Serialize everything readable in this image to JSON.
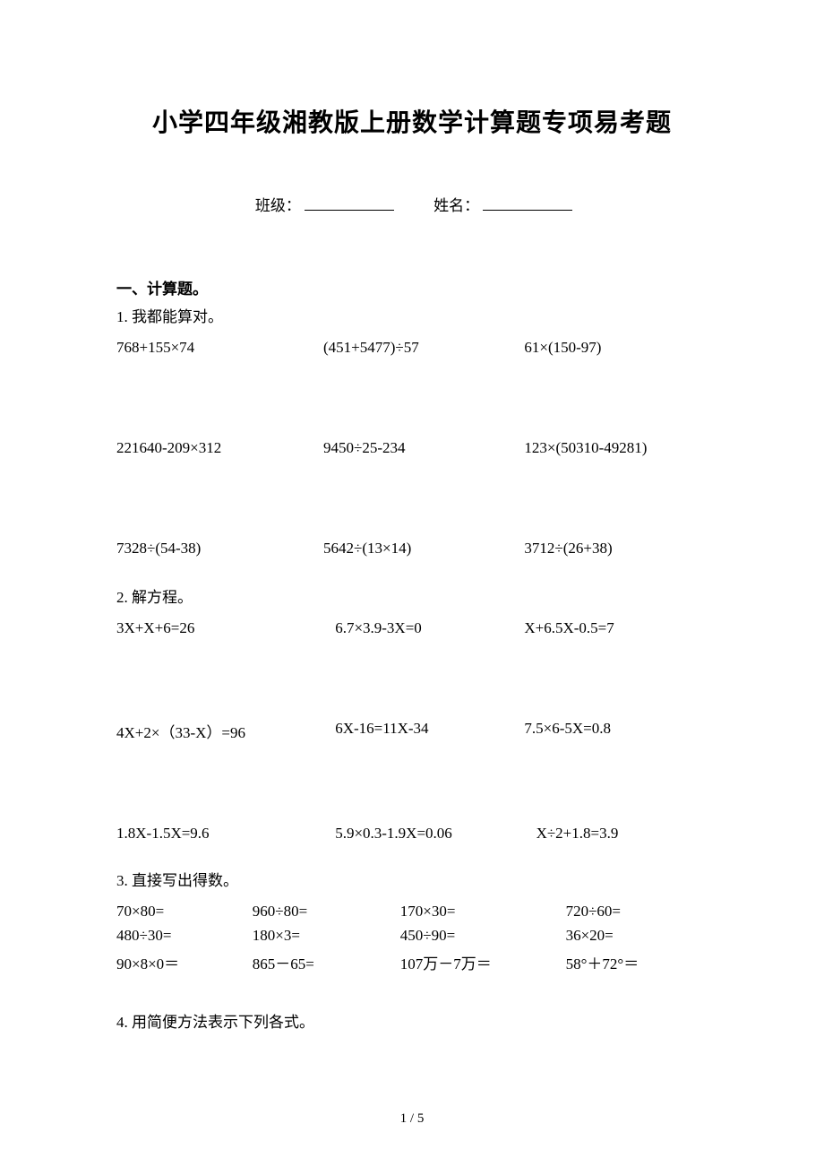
{
  "title": "小学四年级湘教版上册数学计算题专项易考题",
  "form": {
    "class_label": "班级：",
    "name_label": "姓名："
  },
  "section_header": "一、计算题。",
  "q1": {
    "title": "1. 我都能算对。",
    "rows": [
      [
        "768+155×74",
        "(451+5477)÷57",
        "61×(150-97)"
      ],
      [
        "221640-209×312",
        "9450÷25-234",
        "123×(50310-49281)"
      ],
      [
        "7328÷(54-38)",
        "5642÷(13×14)",
        "3712÷(26+38)"
      ]
    ]
  },
  "q2": {
    "title": "2. 解方程。",
    "rows": [
      [
        "3X+X+6=26",
        "6.7×3.9-3X=0",
        "X+6.5X-0.5=7"
      ],
      [
        "4X+2×（33-X）=96",
        "6X-16=11X-34",
        "7.5×6-5X=0.8"
      ],
      [
        "1.8X-1.5X=9.6",
        "5.9×0.3-1.9X=0.06",
        "X÷2+1.8=3.9"
      ]
    ]
  },
  "q3": {
    "title": "3. 直接写出得数。",
    "rows": [
      [
        "70×80=",
        "960÷80=",
        "170×30=",
        "720÷60="
      ],
      [
        "480÷30=",
        "180×3=",
        "450÷90=",
        "36×20="
      ],
      [
        "90×8×0＝",
        "865－65=",
        "107万－7万＝",
        "58°＋72°＝"
      ]
    ]
  },
  "q4": {
    "title": "4. 用简便方法表示下列各式。"
  },
  "footer": "1 / 5"
}
